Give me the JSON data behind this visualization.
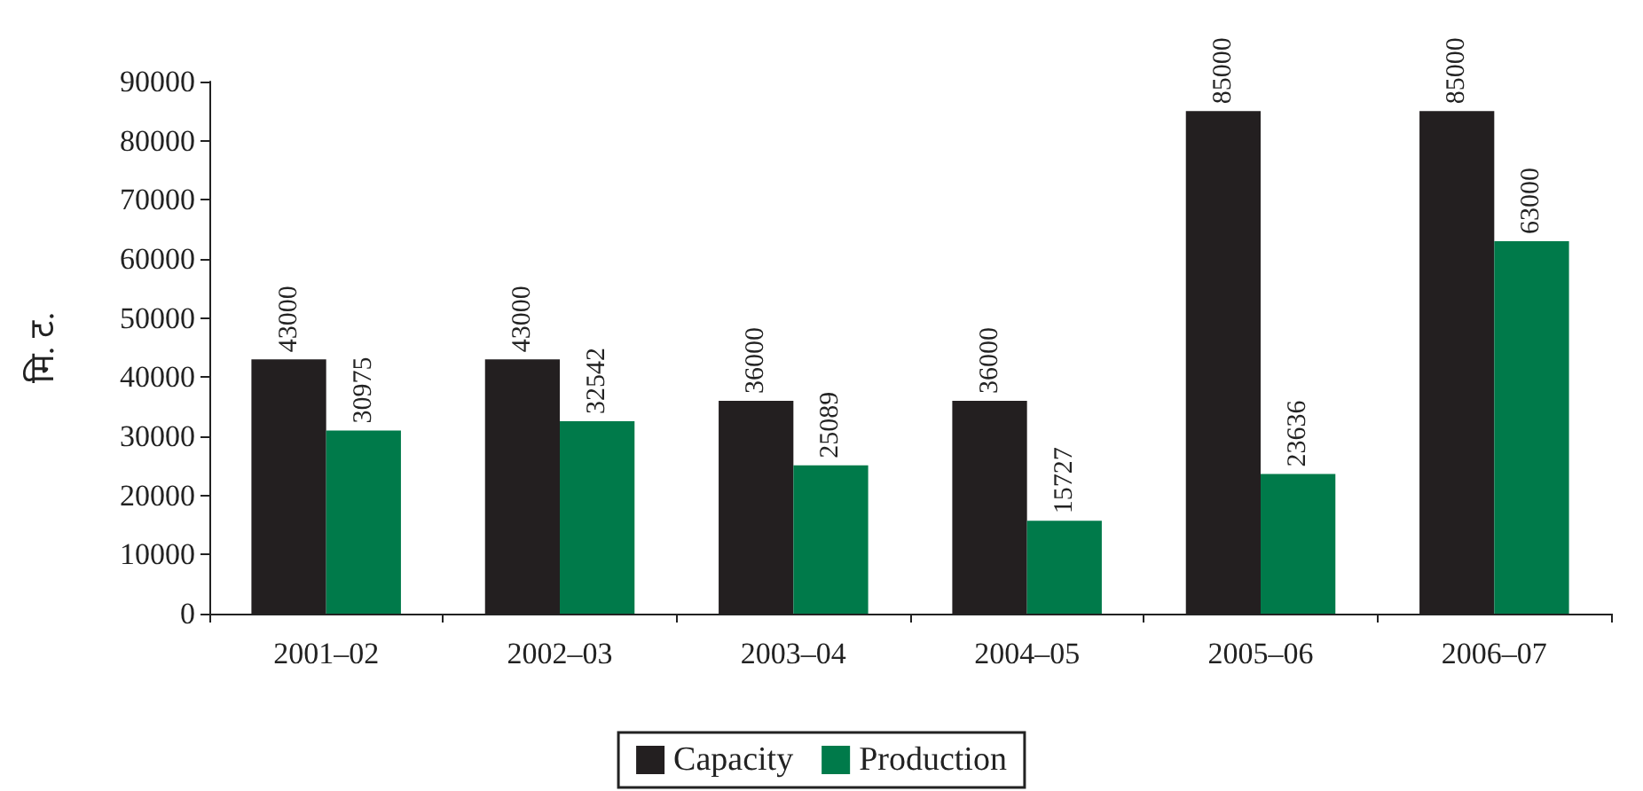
{
  "chart_data": {
    "type": "bar",
    "ylabel": "मि. ट.",
    "categories": [
      "2001–02",
      "2002–03",
      "2003–04",
      "2004–05",
      "2005–06",
      "2006–07"
    ],
    "series": [
      {
        "name": "Capacity",
        "color": "#231f20",
        "values": [
          43000,
          43000,
          36000,
          36000,
          85000,
          85000
        ]
      },
      {
        "name": "Production",
        "color": "#007a4a",
        "values": [
          30975,
          32542,
          25089,
          15727,
          23636,
          63000
        ]
      }
    ],
    "ylim": [
      0,
      90000
    ],
    "yticks": [
      0,
      10000,
      20000,
      30000,
      40000,
      50000,
      60000,
      70000,
      80000,
      90000
    ],
    "grid": false,
    "legend": "bottom",
    "data_labels": true
  }
}
